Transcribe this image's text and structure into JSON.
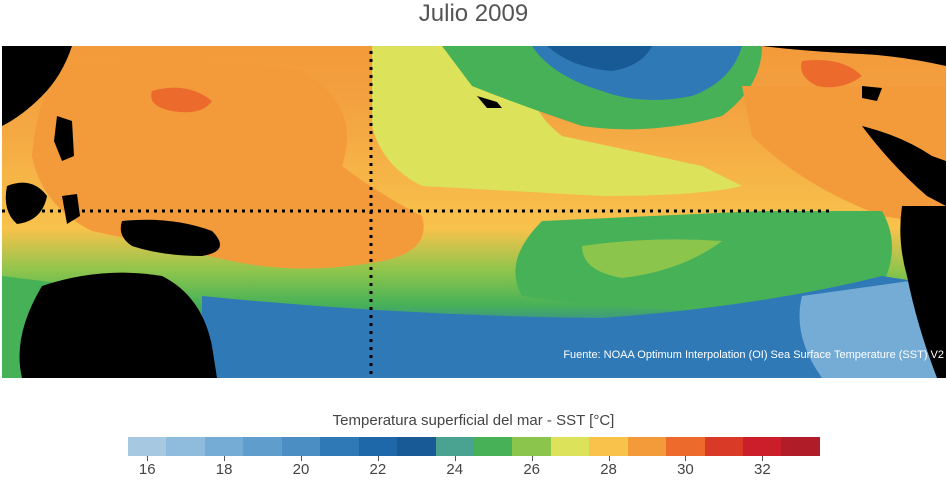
{
  "title": "Julio 2009",
  "source_credit": "Fuente: NOAA Optimum Interpolation (OI) Sea Surface Temperature (SST) V2",
  "colorbar": {
    "label": "Temperatura superficial del mar - SST  [°C]",
    "colors": [
      "#a6c8e0",
      "#8fbcdc",
      "#74acd5",
      "#5e9dcc",
      "#4a8ec4",
      "#2f79b7",
      "#1e68aa",
      "#175a95",
      "#4aa390",
      "#47b158",
      "#8cc54c",
      "#dce25a",
      "#f8c24b",
      "#f39a3a",
      "#ec6a2c",
      "#d93a28",
      "#cc1e2a",
      "#b01c28"
    ],
    "ticks": [
      "16",
      "18",
      "20",
      "22",
      "24",
      "26",
      "28",
      "30",
      "32"
    ]
  },
  "map": {
    "grid_lines": [
      "Equator",
      "180°"
    ]
  }
}
